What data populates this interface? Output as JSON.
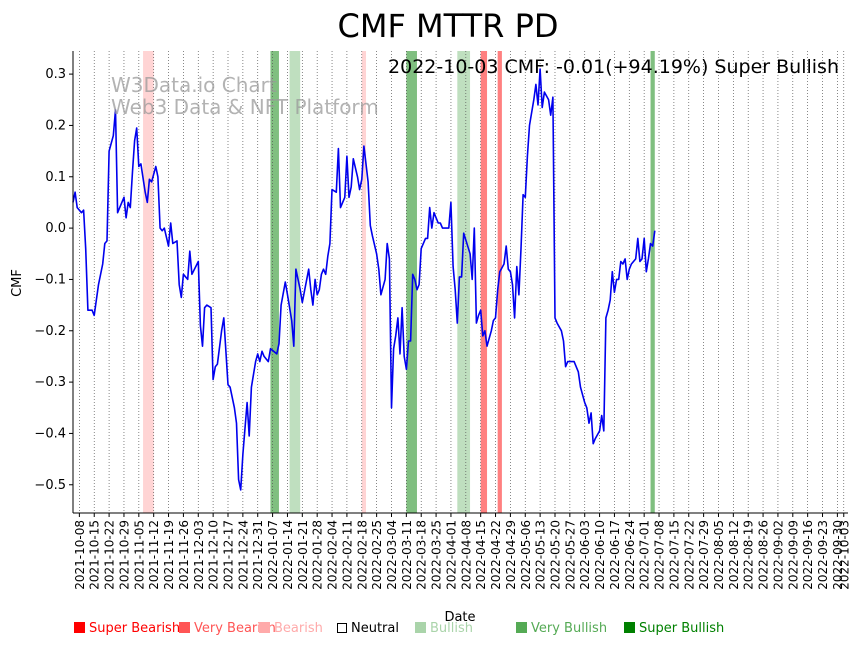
{
  "chart_data": {
    "type": "line",
    "title": "CMF MTTR PD",
    "annotation": "2022-10-03 CMF: -0.01(+94.19%) Super Bullish",
    "watermark": [
      "W3Data.io Chart",
      "Web3 Data & NFT Platform"
    ],
    "xlabel": "Date",
    "ylabel": "CMF",
    "ylim": [
      -0.555,
      0.345
    ],
    "yticks": [
      0.3,
      0.2,
      0.1,
      0.0,
      -0.1,
      -0.2,
      -0.3,
      -0.4,
      -0.5
    ],
    "yticklabels": [
      "0.3",
      "0.2",
      "0.1",
      "0.0",
      "−0.1",
      "−0.2",
      "−0.3",
      "−0.4",
      "−0.5"
    ],
    "xlim": [
      "2021-10-05",
      "2022-10-05"
    ],
    "xticks": [
      "2021-10-08",
      "2021-10-15",
      "2021-10-22",
      "2021-10-29",
      "2021-11-05",
      "2021-11-12",
      "2021-11-19",
      "2021-11-26",
      "2021-12-03",
      "2021-12-10",
      "2021-12-17",
      "2021-12-24",
      "2021-12-31",
      "2022-01-07",
      "2022-01-14",
      "2022-01-21",
      "2022-01-28",
      "2022-02-04",
      "2022-02-11",
      "2022-02-18",
      "2022-02-25",
      "2022-03-04",
      "2022-03-11",
      "2022-03-18",
      "2022-03-25",
      "2022-04-01",
      "2022-04-08",
      "2022-04-15",
      "2022-04-22",
      "2022-04-29",
      "2022-05-06",
      "2022-05-13",
      "2022-05-20",
      "2022-05-27",
      "2022-06-03",
      "2022-06-10",
      "2022-06-17",
      "2022-06-24",
      "2022-07-01",
      "2022-07-08",
      "2022-07-15",
      "2022-07-22",
      "2022-07-29",
      "2022-08-05",
      "2022-08-12",
      "2022-08-19",
      "2022-08-26",
      "2022-09-02",
      "2022-09-09",
      "2022-09-16",
      "2022-09-23",
      "2022-09-30",
      "2022-10-03"
    ],
    "grid": "vertical dotted",
    "legend_position": "bottom",
    "series": [
      {
        "color": "#0000ee",
        "points": [
          [
            "2021-10-05",
            0.05
          ],
          [
            "2021-10-06",
            0.07
          ],
          [
            "2021-10-07",
            0.04
          ],
          [
            "2021-10-09",
            0.03
          ],
          [
            "2021-10-10",
            0.035
          ],
          [
            "2021-10-11",
            -0.04
          ],
          [
            "2021-10-12",
            -0.16
          ],
          [
            "2021-10-14",
            -0.16
          ],
          [
            "2021-10-15",
            -0.17
          ],
          [
            "2021-10-17",
            -0.11
          ],
          [
            "2021-10-19",
            -0.07
          ],
          [
            "2021-10-20",
            -0.03
          ],
          [
            "2021-10-21",
            -0.025
          ],
          [
            "2021-10-22",
            0.15
          ],
          [
            "2021-10-24",
            0.18
          ],
          [
            "2021-10-25",
            0.23
          ],
          [
            "2021-10-26",
            0.03
          ],
          [
            "2021-10-27",
            0.04
          ],
          [
            "2021-10-29",
            0.06
          ],
          [
            "2021-10-30",
            0.02
          ],
          [
            "2021-10-31",
            0.05
          ],
          [
            "2021-11-01",
            0.04
          ],
          [
            "2021-11-02",
            0.11
          ],
          [
            "2021-11-03",
            0.17
          ],
          [
            "2021-11-04",
            0.195
          ],
          [
            "2021-11-05",
            0.12
          ],
          [
            "2021-11-06",
            0.125
          ],
          [
            "2021-11-08",
            0.07
          ],
          [
            "2021-11-09",
            0.05
          ],
          [
            "2021-11-10",
            0.095
          ],
          [
            "2021-11-11",
            0.09
          ],
          [
            "2021-11-13",
            0.12
          ],
          [
            "2021-11-14",
            0.1
          ],
          [
            "2021-11-15",
            0.0
          ],
          [
            "2021-11-16",
            -0.005
          ],
          [
            "2021-11-17",
            0.0
          ],
          [
            "2021-11-19",
            -0.035
          ],
          [
            "2021-11-20",
            0.01
          ],
          [
            "2021-11-21",
            -0.03
          ],
          [
            "2021-11-23",
            -0.025
          ],
          [
            "2021-11-24",
            -0.11
          ],
          [
            "2021-11-25",
            -0.135
          ],
          [
            "2021-11-26",
            -0.09
          ],
          [
            "2021-11-28",
            -0.1
          ],
          [
            "2021-11-29",
            -0.045
          ],
          [
            "2021-11-30",
            -0.09
          ],
          [
            "2021-12-03",
            -0.065
          ],
          [
            "2021-12-04",
            -0.19
          ],
          [
            "2021-12-05",
            -0.23
          ],
          [
            "2021-12-06",
            -0.155
          ],
          [
            "2021-12-07",
            -0.15
          ],
          [
            "2021-12-09",
            -0.155
          ],
          [
            "2021-12-10",
            -0.295
          ],
          [
            "2021-12-11",
            -0.27
          ],
          [
            "2021-12-12",
            -0.265
          ],
          [
            "2021-12-14",
            -0.2
          ],
          [
            "2021-12-15",
            -0.175
          ],
          [
            "2021-12-16",
            -0.24
          ],
          [
            "2021-12-17",
            -0.305
          ],
          [
            "2021-12-18",
            -0.31
          ],
          [
            "2021-12-20",
            -0.35
          ],
          [
            "2021-12-21",
            -0.38
          ],
          [
            "2021-12-22",
            -0.49
          ],
          [
            "2021-12-23",
            -0.51
          ],
          [
            "2021-12-24",
            -0.44
          ],
          [
            "2021-12-26",
            -0.34
          ],
          [
            "2021-12-27",
            -0.405
          ],
          [
            "2021-12-28",
            -0.31
          ],
          [
            "2021-12-30",
            -0.26
          ],
          [
            "2021-12-31",
            -0.245
          ],
          [
            "2022-01-01",
            -0.26
          ],
          [
            "2022-01-02",
            -0.24
          ],
          [
            "2022-01-03",
            -0.25
          ],
          [
            "2022-01-05",
            -0.26
          ],
          [
            "2022-01-06",
            -0.235
          ],
          [
            "2022-01-09",
            -0.245
          ],
          [
            "2022-01-10",
            -0.225
          ],
          [
            "2022-01-11",
            -0.15
          ],
          [
            "2022-01-13",
            -0.105
          ],
          [
            "2022-01-14",
            -0.13
          ],
          [
            "2022-01-16",
            -0.18
          ],
          [
            "2022-01-17",
            -0.23
          ],
          [
            "2022-01-18",
            -0.08
          ],
          [
            "2022-01-20",
            -0.12
          ],
          [
            "2022-01-21",
            -0.145
          ],
          [
            "2022-01-24",
            -0.08
          ],
          [
            "2022-01-25",
            -0.12
          ],
          [
            "2022-01-26",
            -0.15
          ],
          [
            "2022-01-27",
            -0.1
          ],
          [
            "2022-01-28",
            -0.13
          ],
          [
            "2022-01-29",
            -0.12
          ],
          [
            "2022-01-30",
            -0.09
          ],
          [
            "2022-01-31",
            -0.08
          ],
          [
            "2022-02-01",
            -0.09
          ],
          [
            "2022-02-02",
            -0.055
          ],
          [
            "2022-02-03",
            -0.03
          ],
          [
            "2022-02-04",
            0.075
          ],
          [
            "2022-02-06",
            0.07
          ],
          [
            "2022-02-07",
            0.155
          ],
          [
            "2022-02-08",
            0.04
          ],
          [
            "2022-02-10",
            0.06
          ],
          [
            "2022-02-11",
            0.14
          ],
          [
            "2022-02-12",
            0.06
          ],
          [
            "2022-02-13",
            0.08
          ],
          [
            "2022-02-14",
            0.135
          ],
          [
            "2022-02-16",
            0.1
          ],
          [
            "2022-02-17",
            0.075
          ],
          [
            "2022-02-18",
            0.095
          ],
          [
            "2022-02-19",
            0.16
          ],
          [
            "2022-02-21",
            0.09
          ],
          [
            "2022-02-22",
            0.005
          ],
          [
            "2022-02-23",
            -0.015
          ],
          [
            "2022-02-25",
            -0.05
          ],
          [
            "2022-02-26",
            -0.08
          ],
          [
            "2022-02-27",
            -0.13
          ],
          [
            "2022-02-28",
            -0.115
          ],
          [
            "2022-03-01",
            -0.1
          ],
          [
            "2022-03-02",
            -0.03
          ],
          [
            "2022-03-03",
            -0.06
          ],
          [
            "2022-03-04",
            -0.35
          ],
          [
            "2022-03-05",
            -0.235
          ],
          [
            "2022-03-06",
            -0.21
          ],
          [
            "2022-03-07",
            -0.175
          ],
          [
            "2022-03-08",
            -0.245
          ],
          [
            "2022-03-09",
            -0.155
          ],
          [
            "2022-03-10",
            -0.25
          ],
          [
            "2022-03-11",
            -0.275
          ],
          [
            "2022-03-12",
            -0.22
          ],
          [
            "2022-03-13",
            -0.22
          ],
          [
            "2022-03-14",
            -0.09
          ],
          [
            "2022-03-15",
            -0.1
          ],
          [
            "2022-03-16",
            -0.12
          ],
          [
            "2022-03-17",
            -0.11
          ],
          [
            "2022-03-18",
            -0.04
          ],
          [
            "2022-03-20",
            -0.02
          ],
          [
            "2022-03-21",
            -0.02
          ],
          [
            "2022-03-22",
            0.04
          ],
          [
            "2022-03-23",
            0.0
          ],
          [
            "2022-03-24",
            0.03
          ],
          [
            "2022-03-26",
            0.01
          ],
          [
            "2022-03-27",
            0.01
          ],
          [
            "2022-03-28",
            0.0
          ],
          [
            "2022-03-31",
            0.0
          ],
          [
            "2022-04-01",
            0.05
          ],
          [
            "2022-04-02",
            -0.075
          ],
          [
            "2022-04-03",
            -0.12
          ],
          [
            "2022-04-04",
            -0.185
          ],
          [
            "2022-04-05",
            -0.095
          ],
          [
            "2022-04-06",
            -0.095
          ],
          [
            "2022-04-07",
            -0.01
          ],
          [
            "2022-04-10",
            -0.05
          ],
          [
            "2022-04-11",
            -0.1
          ],
          [
            "2022-04-12",
            0.0
          ],
          [
            "2022-04-13",
            -0.185
          ],
          [
            "2022-04-14",
            -0.17
          ],
          [
            "2022-04-15",
            -0.16
          ],
          [
            "2022-04-16",
            -0.21
          ],
          [
            "2022-04-17",
            -0.2
          ],
          [
            "2022-04-18",
            -0.23
          ],
          [
            "2022-04-20",
            -0.2
          ],
          [
            "2022-04-21",
            -0.18
          ],
          [
            "2022-04-22",
            -0.175
          ],
          [
            "2022-04-23",
            -0.12
          ],
          [
            "2022-04-24",
            -0.085
          ],
          [
            "2022-04-26",
            -0.07
          ],
          [
            "2022-04-27",
            -0.035
          ],
          [
            "2022-04-28",
            -0.08
          ],
          [
            "2022-04-29",
            -0.085
          ],
          [
            "2022-04-30",
            -0.11
          ],
          [
            "2022-05-01",
            -0.175
          ],
          [
            "2022-05-02",
            -0.075
          ],
          [
            "2022-05-03",
            -0.13
          ],
          [
            "2022-05-04",
            -0.04
          ],
          [
            "2022-05-05",
            0.065
          ],
          [
            "2022-05-06",
            0.06
          ],
          [
            "2022-05-07",
            0.14
          ],
          [
            "2022-05-08",
            0.2
          ],
          [
            "2022-05-10",
            0.25
          ],
          [
            "2022-05-11",
            0.28
          ],
          [
            "2022-05-12",
            0.24
          ],
          [
            "2022-05-13",
            0.31
          ],
          [
            "2022-05-14",
            0.235
          ],
          [
            "2022-05-15",
            0.265
          ],
          [
            "2022-05-17",
            0.25
          ],
          [
            "2022-05-18",
            0.22
          ],
          [
            "2022-05-19",
            0.255
          ],
          [
            "2022-05-20",
            -0.175
          ],
          [
            "2022-05-21",
            -0.185
          ],
          [
            "2022-05-23",
            -0.2
          ],
          [
            "2022-05-24",
            -0.22
          ],
          [
            "2022-05-25",
            -0.27
          ],
          [
            "2022-05-26",
            -0.26
          ],
          [
            "2022-05-29",
            -0.26
          ],
          [
            "2022-05-31",
            -0.28
          ],
          [
            "2022-06-01",
            -0.31
          ],
          [
            "2022-06-03",
            -0.34
          ],
          [
            "2022-06-04",
            -0.35
          ],
          [
            "2022-06-05",
            -0.38
          ],
          [
            "2022-06-06",
            -0.36
          ],
          [
            "2022-06-07",
            -0.42
          ],
          [
            "2022-06-08",
            -0.41
          ],
          [
            "2022-06-10",
            -0.395
          ],
          [
            "2022-06-11",
            -0.365
          ],
          [
            "2022-06-12",
            -0.395
          ],
          [
            "2022-06-13",
            -0.175
          ],
          [
            "2022-06-14",
            -0.16
          ],
          [
            "2022-06-15",
            -0.14
          ],
          [
            "2022-06-16",
            -0.085
          ],
          [
            "2022-06-17",
            -0.125
          ],
          [
            "2022-06-18",
            -0.1
          ],
          [
            "2022-06-19",
            -0.1
          ],
          [
            "2022-06-20",
            -0.065
          ],
          [
            "2022-06-21",
            -0.07
          ],
          [
            "2022-06-22",
            -0.06
          ],
          [
            "2022-06-23",
            -0.1
          ],
          [
            "2022-06-24",
            -0.08
          ],
          [
            "2022-06-25",
            -0.07
          ],
          [
            "2022-06-27",
            -0.06
          ],
          [
            "2022-06-28",
            -0.02
          ],
          [
            "2022-06-29",
            -0.065
          ],
          [
            "2022-06-30",
            -0.06
          ],
          [
            "2022-07-01",
            -0.02
          ],
          [
            "2022-07-02",
            -0.085
          ],
          [
            "2022-07-03",
            -0.06
          ],
          [
            "2022-07-04",
            -0.03
          ],
          [
            "2022-07-05",
            -0.035
          ],
          [
            "2022-07-06",
            -0.005
          ]
        ]
      }
    ],
    "signal_bands": [
      {
        "start": "2021-11-07",
        "end": "2021-11-11",
        "level": "Bearish"
      },
      {
        "start": "2022-01-06",
        "end": "2022-01-09",
        "level": "Very Bullish"
      },
      {
        "start": "2022-01-15",
        "end": "2022-01-19",
        "level": "Bullish"
      },
      {
        "start": "2022-02-18",
        "end": "2022-02-19",
        "level": "Bearish"
      },
      {
        "start": "2022-03-11",
        "end": "2022-03-15",
        "level": "Very Bullish"
      },
      {
        "start": "2022-04-04",
        "end": "2022-04-09",
        "level": "Bullish"
      },
      {
        "start": "2022-04-15",
        "end": "2022-04-17",
        "level": "Very Bearish"
      },
      {
        "start": "2022-04-23",
        "end": "2022-04-24",
        "level": "Very Bearish"
      },
      {
        "start": "2022-07-04",
        "end": "2022-07-05",
        "level": "Very Bullish"
      }
    ],
    "legend": [
      {
        "label": "Super Bearish",
        "color": "#ff0000",
        "text_color": "#ff0000"
      },
      {
        "label": "Very Bearish",
        "color": "#ff5555",
        "text_color": "#ff5555"
      },
      {
        "label": "Bearish",
        "color": "#ffaaaa",
        "text_color": "#ffaaaa"
      },
      {
        "label": "Neutral",
        "color": "#ffffff",
        "text_color": "#000000"
      },
      {
        "label": "Bullish",
        "color": "#aad4aa",
        "text_color": "#aad4aa"
      },
      {
        "label": "Very Bullish",
        "color": "#55aa55",
        "text_color": "#55aa55"
      },
      {
        "label": "Super Bullish",
        "color": "#008000",
        "text_color": "#008000"
      }
    ]
  }
}
